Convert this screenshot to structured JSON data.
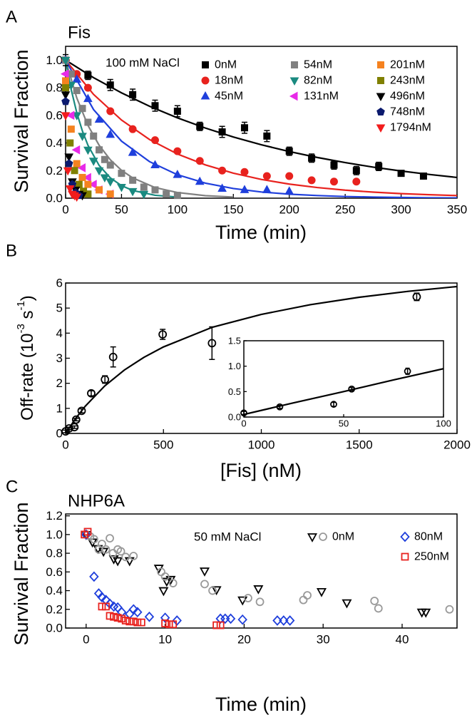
{
  "chart_data": [
    {
      "type": "scatter",
      "panel": "A",
      "title": "Fis",
      "annotation": "100 mM NaCl",
      "xlabel": "Time (min)",
      "ylabel": "Survival Fraction",
      "xlim": [
        0,
        350
      ],
      "ylim": [
        0,
        1.1
      ],
      "xticks": [
        0,
        50,
        100,
        150,
        200,
        250,
        300,
        350
      ],
      "yticks": [
        {
          "value": 0,
          "label": "0.0"
        },
        0.2,
        0.4,
        0.6,
        0.8,
        {
          "value": 1,
          "label": "1.0"
        }
      ],
      "series": [
        {
          "name": "0nM",
          "color": "#000000",
          "marker": "square",
          "filled": true,
          "x": [
            0,
            20,
            40,
            60,
            80,
            100,
            120,
            140,
            160,
            180,
            200,
            220,
            240,
            260,
            280,
            300,
            320
          ],
          "values": [
            1.0,
            0.89,
            0.82,
            0.75,
            0.67,
            0.63,
            0.52,
            0.48,
            0.51,
            0.45,
            0.34,
            0.29,
            0.24,
            0.2,
            0.23,
            0.18,
            0.16
          ],
          "errors": [
            0.04,
            0.03,
            0.04,
            0.04,
            0.04,
            0.04,
            0.03,
            0.04,
            0.04,
            0.04,
            0.03,
            0.03,
            0.03,
            0.03,
            0.03,
            0.02,
            0.02
          ],
          "fit_x": [
            0,
            25,
            50,
            75,
            100,
            125,
            150,
            175,
            200,
            225,
            250,
            275,
            300,
            325,
            350
          ],
          "fit_values": [
            1,
            0.873,
            0.763,
            0.666,
            0.582,
            0.508,
            0.443,
            0.387,
            0.338,
            0.295,
            0.258,
            0.225,
            0.197,
            0.172,
            0.15
          ]
        },
        {
          "name": "18nM",
          "color": "#e8221e",
          "marker": "circle",
          "filled": true,
          "x": [
            0,
            10,
            20,
            40,
            60,
            80,
            100,
            120,
            140,
            160,
            180,
            200,
            220,
            240,
            260
          ],
          "values": [
            1.0,
            0.9,
            0.8,
            0.63,
            0.5,
            0.42,
            0.34,
            0.27,
            0.2,
            0.19,
            0.16,
            0.16,
            0.13,
            0.12,
            0.12
          ],
          "fit_x": [
            0,
            25,
            50,
            75,
            100,
            125,
            150,
            175,
            200,
            225,
            250,
            275,
            300,
            325,
            350
          ],
          "fit_values": [
            1,
            0.752,
            0.566,
            0.425,
            0.32,
            0.241,
            0.181,
            0.136,
            0.102,
            0.077,
            0.058,
            0.044,
            0.033,
            0.025,
            0.019
          ]
        },
        {
          "name": "45nM",
          "color": "#1f3fdc",
          "marker": "triangle-up",
          "filled": true,
          "x": [
            0,
            10,
            20,
            30,
            40,
            60,
            80,
            100,
            120,
            140,
            160,
            180,
            200
          ],
          "values": [
            1.0,
            0.86,
            0.72,
            0.57,
            0.46,
            0.33,
            0.24,
            0.17,
            0.12,
            0.07,
            0.06,
            0.06,
            0.05
          ],
          "fit_x": [
            0,
            25,
            50,
            75,
            100,
            125,
            150,
            175,
            200,
            225,
            250,
            275,
            300,
            325,
            350
          ],
          "fit_values": [
            1,
            0.642,
            0.413,
            0.265,
            0.17,
            0.109,
            0.07,
            0.045,
            0.029,
            0.019,
            0.012,
            0.008,
            0.005,
            0.003,
            0.002
          ]
        },
        {
          "name": "54nM",
          "color": "#808080",
          "marker": "square",
          "filled": true,
          "x": [
            0,
            5,
            10,
            15,
            20,
            25,
            30,
            35,
            40,
            50,
            60,
            70,
            80,
            90,
            100
          ],
          "values": [
            1.0,
            0.9,
            0.78,
            0.65,
            0.55,
            0.45,
            0.35,
            0.28,
            0.24,
            0.18,
            0.13,
            0.08,
            0.06,
            0.03,
            0.02
          ],
          "fit_x": [
            0,
            10,
            20,
            30,
            40,
            50,
            60,
            80,
            100,
            125,
            150
          ],
          "fit_values": [
            1,
            0.726,
            0.527,
            0.383,
            0.278,
            0.202,
            0.147,
            0.077,
            0.041,
            0.018,
            0.008
          ]
        },
        {
          "name": "82nM",
          "color": "#1a8a80",
          "marker": "triangle-down",
          "filled": true,
          "x": [
            0,
            5,
            10,
            15,
            20,
            25,
            30,
            35,
            40,
            50,
            60,
            70
          ],
          "values": [
            1.0,
            0.82,
            0.6,
            0.45,
            0.35,
            0.27,
            0.2,
            0.15,
            0.12,
            0.08,
            0.05,
            0.03
          ],
          "fit_x": [
            0,
            5,
            10,
            15,
            20,
            30,
            40,
            50,
            60,
            80,
            100
          ],
          "fit_values": [
            1,
            0.787,
            0.619,
            0.487,
            0.383,
            0.237,
            0.147,
            0.091,
            0.056,
            0.021,
            0.008
          ]
        },
        {
          "name": "131nM",
          "color": "#e82ae8",
          "marker": "triangle-left",
          "filled": true,
          "x": [
            0,
            5,
            10,
            15,
            20,
            25,
            30,
            40
          ],
          "values": [
            0.9,
            0.6,
            0.35,
            0.22,
            0.15,
            0.1,
            0.06,
            0.03
          ]
        },
        {
          "name": "201nM",
          "color": "#f5821f",
          "marker": "square",
          "filled": true,
          "x": [
            0,
            5,
            10,
            15,
            20,
            30,
            40
          ],
          "values": [
            0.85,
            0.5,
            0.25,
            0.15,
            0.1,
            0.06,
            0.03
          ]
        },
        {
          "name": "243nM",
          "color": "#808000",
          "marker": "square",
          "filled": true,
          "x": [
            0,
            4,
            8,
            12,
            16,
            20
          ],
          "values": [
            0.8,
            0.4,
            0.2,
            0.1,
            0.05,
            0.03
          ]
        },
        {
          "name": "496nM",
          "color": "#000000",
          "marker": "triangle-down",
          "filled": true,
          "x": [
            0,
            3,
            6,
            9,
            12,
            15
          ],
          "values": [
            0.75,
            0.3,
            0.12,
            0.06,
            0.03,
            0.02
          ]
        },
        {
          "name": "748nM",
          "color": "#0b1a6e",
          "marker": "pentagon",
          "filled": true,
          "x": [
            0,
            3,
            6,
            9,
            12
          ],
          "values": [
            0.7,
            0.25,
            0.1,
            0.04,
            0.02
          ]
        },
        {
          "name": "1794nM",
          "color": "#f21c1c",
          "marker": "triangle-down",
          "filled": true,
          "x": [
            0,
            2,
            4,
            6,
            8,
            10
          ],
          "values": [
            0.6,
            0.2,
            0.07,
            0.03,
            0.02,
            0.01
          ]
        }
      ]
    },
    {
      "type": "scatter",
      "panel": "B",
      "xlabel": "[Fis] (nM)",
      "ylabel": [
        "Off-rate (10",
        "-3",
        " s",
        "-1",
        ")"
      ],
      "xlim": [
        0,
        2000
      ],
      "ylim": [
        0,
        6
      ],
      "xticks": [
        0,
        500,
        1000,
        1500,
        2000
      ],
      "yticks": [
        0,
        1,
        2,
        3,
        4,
        5,
        6
      ],
      "series": [
        {
          "color": "#000000",
          "marker": "circle",
          "filled": false,
          "x": [
            0,
            18,
            45,
            54,
            82,
            131,
            201,
            243,
            496,
            748,
            1794
          ],
          "values": [
            0.08,
            0.2,
            0.25,
            0.55,
            0.9,
            1.6,
            2.15,
            3.05,
            3.95,
            3.6,
            5.45
          ],
          "errors": [
            0.05,
            0.05,
            0.05,
            0.05,
            0.08,
            0.1,
            0.15,
            0.4,
            0.2,
            0.65,
            0.15
          ],
          "fit_x": [
            0,
            50,
            100,
            200,
            300,
            400,
            500,
            750,
            1000,
            1250,
            1500,
            1750,
            2000
          ],
          "fit_values": [
            0,
            0.582,
            1.082,
            1.894,
            2.528,
            3.035,
            3.45,
            4.236,
            4.747,
            5.134,
            5.431,
            5.667,
            5.859
          ]
        }
      ],
      "inset": {
        "xlim": [
          0,
          100
        ],
        "ylim": [
          0,
          1.5
        ],
        "xticks": [
          0,
          50,
          100
        ],
        "yticks": [
          {
            "value": 0,
            "label": "0.0"
          },
          0.5,
          {
            "value": 1,
            "label": "1.0"
          },
          1.5
        ],
        "series": [
          {
            "color": "#000000",
            "marker": "circle",
            "filled": false,
            "x": [
              0,
              18,
              45,
              54,
              82
            ],
            "values": [
              0.08,
              0.2,
              0.25,
              0.55,
              0.9
            ],
            "errors": [
              0.03,
              0.03,
              0.04,
              0.03,
              0.06
            ],
            "fit_x": [
              0,
              25,
              50,
              75,
              100
            ],
            "fit_values": [
              0.05,
              0.28,
              0.5,
              0.73,
              0.95
            ]
          }
        ]
      }
    },
    {
      "type": "scatter",
      "panel": "C",
      "title": "NHP6A",
      "annotation": "50 mM NaCl",
      "xlabel": "Time (min)",
      "ylabel": "Survival Fraction",
      "xlim": [
        -2.6,
        46.95
      ],
      "ylim": [
        0,
        1.22
      ],
      "xticks": [
        0,
        10,
        20,
        30,
        40
      ],
      "yticks": [
        {
          "value": 0,
          "label": "0.0"
        },
        0.2,
        0.4,
        0.6,
        0.8,
        {
          "value": 1,
          "label": "1.0"
        },
        1.2
      ],
      "series": [
        {
          "color": "#000000",
          "marker": "triangle-down",
          "filled": false,
          "x": [
            0,
            0.8,
            1.5,
            2.2,
            3.5,
            4,
            5.5,
            9.2,
            9.8,
            10.2,
            10.7,
            15,
            16.5,
            19.8,
            21.8,
            29.8,
            33,
            42.5,
            43
          ],
          "values": [
            1.0,
            0.92,
            0.85,
            0.82,
            0.74,
            0.72,
            0.72,
            0.64,
            0.4,
            0.5,
            0.52,
            0.61,
            0.41,
            0.3,
            0.42,
            0.39,
            0.27,
            0.17,
            0.17
          ]
        },
        {
          "name": "0nM",
          "color": "#999999",
          "marker": "circle",
          "filled": false,
          "x": [
            0,
            0.5,
            1,
            1.6,
            2,
            2.5,
            3,
            3.4,
            4,
            4.4,
            5,
            6,
            9.5,
            10,
            11,
            15,
            16,
            20.5,
            22,
            27.5,
            28,
            36.5,
            37,
            46
          ],
          "values": [
            1.0,
            0.98,
            0.95,
            0.84,
            0.9,
            0.84,
            0.96,
            0.8,
            0.84,
            0.82,
            0.76,
            0.77,
            0.6,
            0.55,
            0.48,
            0.47,
            0.4,
            0.32,
            0.28,
            0.3,
            0.35,
            0.29,
            0.21,
            0.2
          ]
        },
        {
          "name": "80nM",
          "color": "#1f3fdc",
          "marker": "diamond",
          "filled": false,
          "x": [
            0,
            1,
            1.6,
            2,
            2.5,
            3,
            3.5,
            4,
            4.5,
            5.5,
            6,
            6.5,
            8,
            10,
            11.5,
            17,
            17.6,
            18.3,
            19.8,
            24.2,
            25,
            25.8
          ],
          "values": [
            1.0,
            0.55,
            0.37,
            0.33,
            0.3,
            0.26,
            0.23,
            0.22,
            0.17,
            0.15,
            0.2,
            0.17,
            0.12,
            0.11,
            0.08,
            0.1,
            0.1,
            0.1,
            0.09,
            0.08,
            0.08,
            0.08
          ]
        },
        {
          "name": "250nM",
          "color": "#e8221e",
          "marker": "square",
          "filled": false,
          "x": [
            -0.2,
            0.2,
            2,
            2.5,
            3,
            3.5,
            4,
            4.5,
            5,
            5.5,
            6,
            6.5,
            7,
            10,
            10.5,
            11,
            16.5,
            17
          ],
          "values": [
            1.0,
            1.03,
            0.23,
            0.23,
            0.13,
            0.12,
            0.11,
            0.1,
            0.08,
            0.07,
            0.07,
            0.06,
            0.06,
            0.05,
            0.04,
            0.04,
            0.03,
            0.03
          ]
        }
      ]
    }
  ]
}
